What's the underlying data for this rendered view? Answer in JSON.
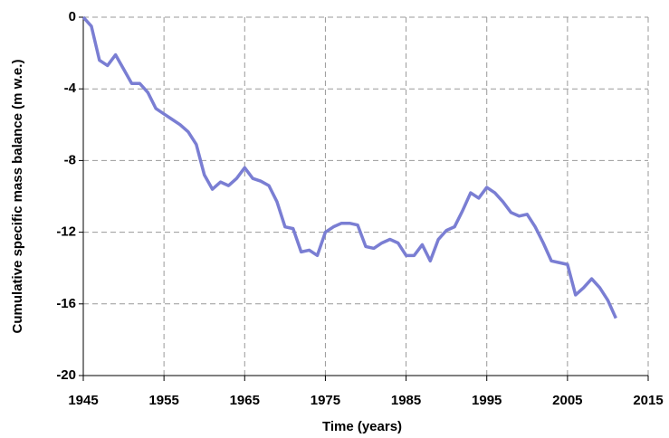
{
  "chart_data": {
    "type": "line",
    "xlabel": "Time (years)",
    "ylabel": "Cumulative specific mass balance (m w.e.)",
    "x": [
      1945,
      1946,
      1947,
      1948,
      1949,
      1950,
      1951,
      1952,
      1953,
      1954,
      1955,
      1956,
      1957,
      1958,
      1959,
      1960,
      1961,
      1962,
      1963,
      1964,
      1965,
      1966,
      1967,
      1968,
      1969,
      1970,
      1971,
      1972,
      1973,
      1974,
      1975,
      1976,
      1977,
      1978,
      1979,
      1980,
      1981,
      1982,
      1983,
      1984,
      1985,
      1986,
      1987,
      1988,
      1989,
      1990,
      1991,
      1992,
      1993,
      1994,
      1995,
      1996,
      1997,
      1998,
      1999,
      2000,
      2001,
      2002,
      2003,
      2004,
      2005,
      2006,
      2007,
      2008,
      2009,
      2010,
      2011
    ],
    "series": [
      {
        "color": "#7a7ed3",
        "values": [
          0,
          -0.5,
          -2.4,
          -2.7,
          -2.1,
          -2.9,
          -3.7,
          -3.7,
          -4.2,
          -5.1,
          -5.4,
          -5.7,
          -6.0,
          -6.4,
          -7.1,
          -8.8,
          -9.6,
          -9.2,
          -9.4,
          -9.0,
          -8.4,
          -9.0,
          -9.15,
          -9.4,
          -10.3,
          -11.7,
          -11.8,
          -13.1,
          -13.0,
          -13.3,
          -12.0,
          -11.7,
          -11.5,
          -11.5,
          -11.6,
          -12.8,
          -12.9,
          -12.6,
          -12.4,
          -12.6,
          -13.3,
          -13.3,
          -12.7,
          -13.6,
          -12.4,
          -11.9,
          -11.7,
          -10.8,
          -9.8,
          -10.1,
          -9.5,
          -9.8,
          -10.3,
          -10.9,
          -11.1,
          -11.0,
          -11.7,
          -12.6,
          -13.6,
          -13.7,
          -13.8,
          -15.5,
          -15.1,
          -14.6,
          -15.1,
          -15.8,
          -16.8
        ]
      }
    ],
    "xlim": [
      1945,
      2015
    ],
    "xticks": [
      1945,
      1955,
      1965,
      1975,
      1985,
      1995,
      2005,
      2015
    ],
    "ylim": [
      -20,
      0
    ],
    "yticks": [
      0,
      -4,
      -8,
      -12,
      -16,
      -20
    ],
    "grid": true
  }
}
